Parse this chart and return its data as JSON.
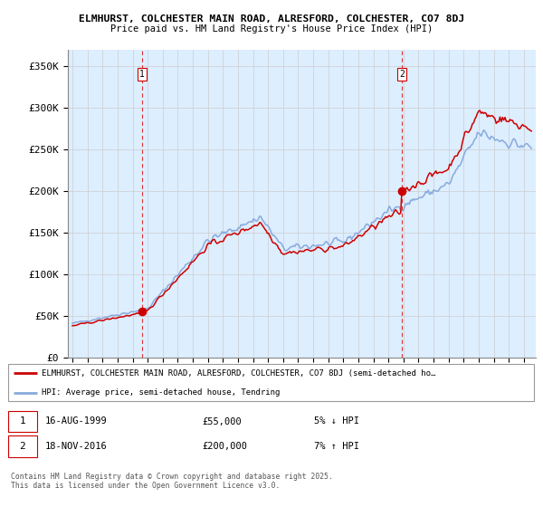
{
  "title_line1": "ELMHURST, COLCHESTER MAIN ROAD, ALRESFORD, COLCHESTER, CO7 8DJ",
  "title_line2": "Price paid vs. HM Land Registry's House Price Index (HPI)",
  "ylabel_ticks": [
    "£0",
    "£50K",
    "£100K",
    "£150K",
    "£200K",
    "£250K",
    "£300K",
    "£350K"
  ],
  "ytick_values": [
    0,
    50000,
    100000,
    150000,
    200000,
    250000,
    300000,
    350000
  ],
  "ylim": [
    0,
    370000
  ],
  "xlim_start": 1994.7,
  "xlim_end": 2025.8,
  "purchase1_date": 1999.62,
  "purchase1_price": 55000,
  "purchase2_date": 2016.88,
  "purchase2_price": 200000,
  "legend_line1": "ELMHURST, COLCHESTER MAIN ROAD, ALRESFORD, COLCHESTER, CO7 8DJ (semi-detached ho…",
  "legend_line2": "HPI: Average price, semi-detached house, Tendring",
  "footnote": "Contains HM Land Registry data © Crown copyright and database right 2025.\nThis data is licensed under the Open Government Licence v3.0.",
  "line_color_red": "#cc0000",
  "line_color_blue": "#88aadd",
  "fill_color": "#ddeeff",
  "background_color": "#ffffff",
  "grid_color": "#cccccc",
  "dashed_line_color": "#dd3333"
}
